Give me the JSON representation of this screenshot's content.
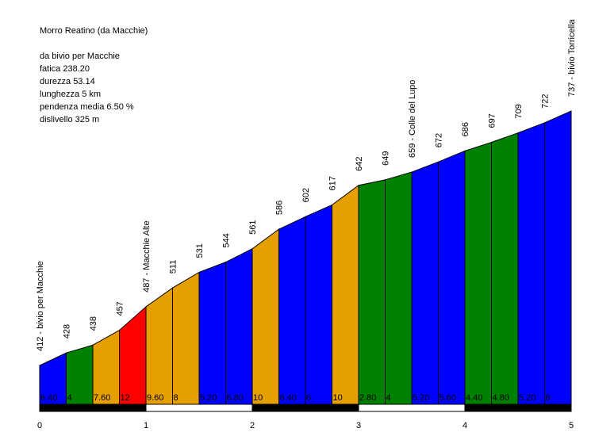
{
  "info": {
    "title": "Morro Reatino (da Macchie)",
    "start": "da bivio per Macchie",
    "fatica": "fatica 238.20",
    "durezza": "durezza 53.14",
    "lunghezza": "lunghezza 5 km",
    "pendenza": "pendenza media 6.50 %",
    "dislivello": "dislivello 325 m"
  },
  "chart_data": {
    "type": "area",
    "title": "Morro Reatino (da Macchie)",
    "xlabel": "",
    "ylabel": "",
    "x_unit": "km",
    "segment_length_km": 0.25,
    "xlim": [
      0,
      5
    ],
    "x_ticks": [
      "0",
      "1",
      "2",
      "3",
      "4",
      "5"
    ],
    "grid": false,
    "elevation_labels": [
      "412 - bivio per Macchie",
      "428",
      "438",
      "457",
      "487 - Macchie Alte",
      "511",
      "531",
      "544",
      "561",
      "586",
      "602",
      "617",
      "642",
      "649",
      "659 - Colle del Lupo",
      "672",
      "686",
      "697",
      "709",
      "722",
      "737 - bivio Torricella"
    ],
    "elevations": [
      412,
      428,
      438,
      457,
      487,
      511,
      531,
      544,
      561,
      586,
      602,
      617,
      642,
      649,
      659,
      672,
      686,
      697,
      709,
      722,
      737
    ],
    "gradient_labels": [
      "6.40",
      "4",
      "7.60",
      "12",
      "9.60",
      "8",
      "5.20",
      "6.80",
      "10",
      "6.40",
      "6",
      "10",
      "2.80",
      "4",
      "5.20",
      "5.60",
      "4.40",
      "4.80",
      "5.20",
      "6"
    ],
    "gradients": [
      6.4,
      4,
      7.6,
      12,
      9.6,
      8,
      5.2,
      6.8,
      10,
      6.4,
      6,
      10,
      2.8,
      4,
      5.2,
      5.6,
      4.4,
      4.8,
      5.2,
      6
    ],
    "gradient_colors": {
      "up_to_5": "#008000",
      "5_to_7": "#0000ff",
      "7_to_11": "#e5a000",
      "over_11": "#ff0000"
    }
  }
}
